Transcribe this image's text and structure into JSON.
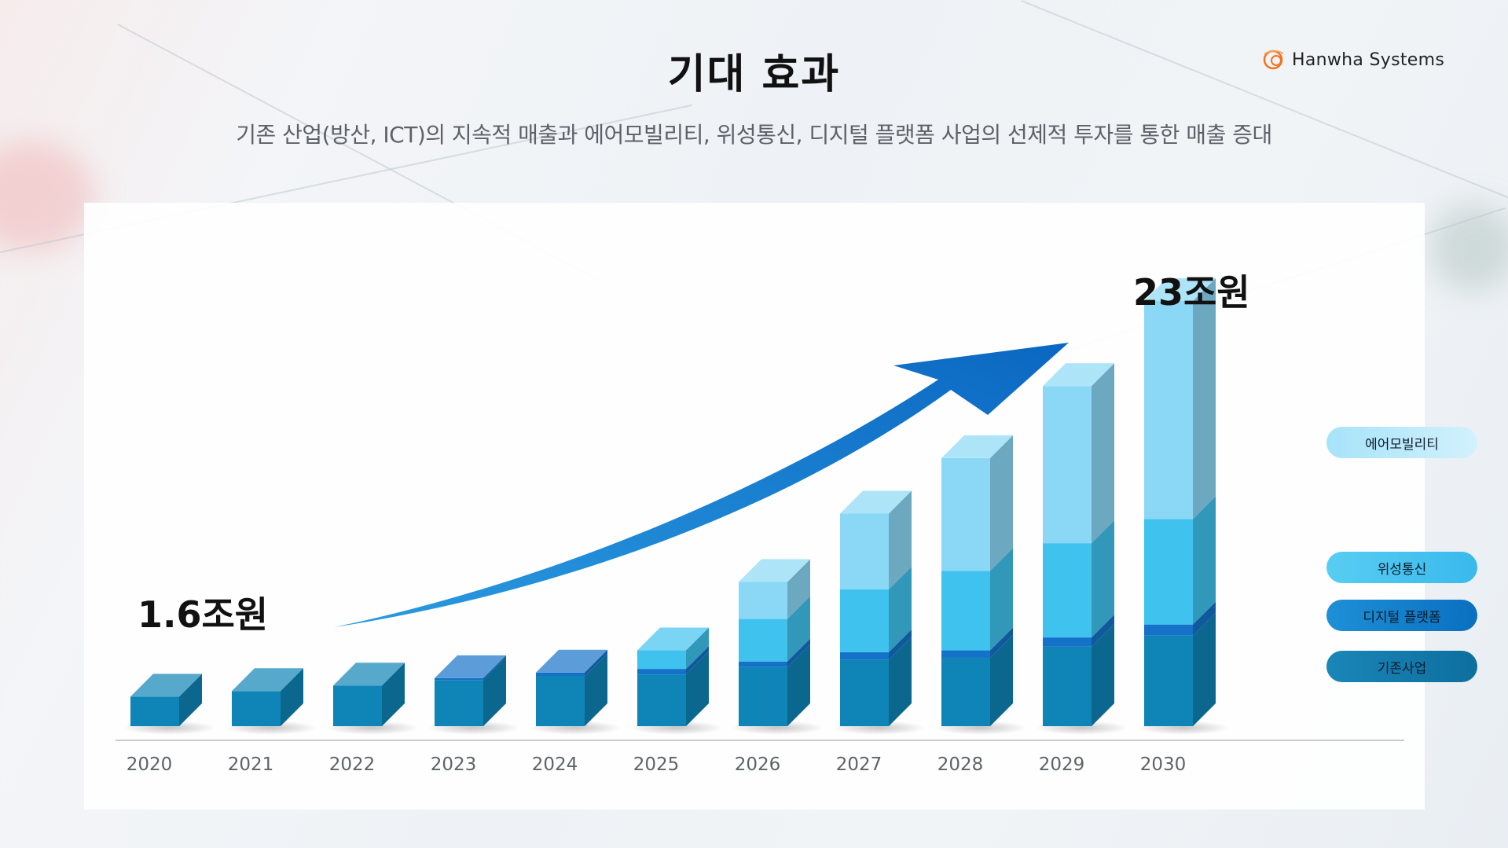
{
  "header": {
    "title": "기대 효과",
    "subtitle": "기존 산업(방산, ICT)의 지속적 매출과 에어모빌리티, 위성통신, 디지털 플랫폼 사업의 선제적 투자를 통한 매출 증대"
  },
  "logo": {
    "text": "Hanwha Systems",
    "icon": "hanwha-logo-icon",
    "color": "#f37321"
  },
  "chart_data": {
    "type": "bar",
    "stacked": true,
    "categories": [
      "2020",
      "2021",
      "2022",
      "2023",
      "2024",
      "2025",
      "2026",
      "2027",
      "2028",
      "2029",
      "2030"
    ],
    "series": [
      {
        "name": "기존사업",
        "color": "#0f84b6",
        "values": [
          1.6,
          1.9,
          2.2,
          2.5,
          2.7,
          2.8,
          3.2,
          3.6,
          3.7,
          4.3,
          4.9
        ]
      },
      {
        "name": "디지털 플랫폼",
        "color": "#1572c9",
        "values": [
          0,
          0,
          0,
          0.1,
          0.2,
          0.3,
          0.3,
          0.4,
          0.4,
          0.5,
          0.6
        ]
      },
      {
        "name": "위성통신",
        "color": "#3fc3ee",
        "values": [
          0,
          0,
          0,
          0,
          0,
          1.0,
          2.3,
          3.4,
          4.3,
          5.1,
          5.7
        ]
      },
      {
        "name": "에어모빌리티",
        "color": "#8ad8f5",
        "values": [
          0,
          0,
          0,
          0,
          0,
          0,
          2.0,
          4.1,
          6.1,
          8.5,
          11.8
        ]
      }
    ],
    "annotations": {
      "start": "1.6조원",
      "end": "23조원"
    },
    "ylim": [
      0,
      23
    ],
    "grid": false,
    "legend": "right"
  }
}
